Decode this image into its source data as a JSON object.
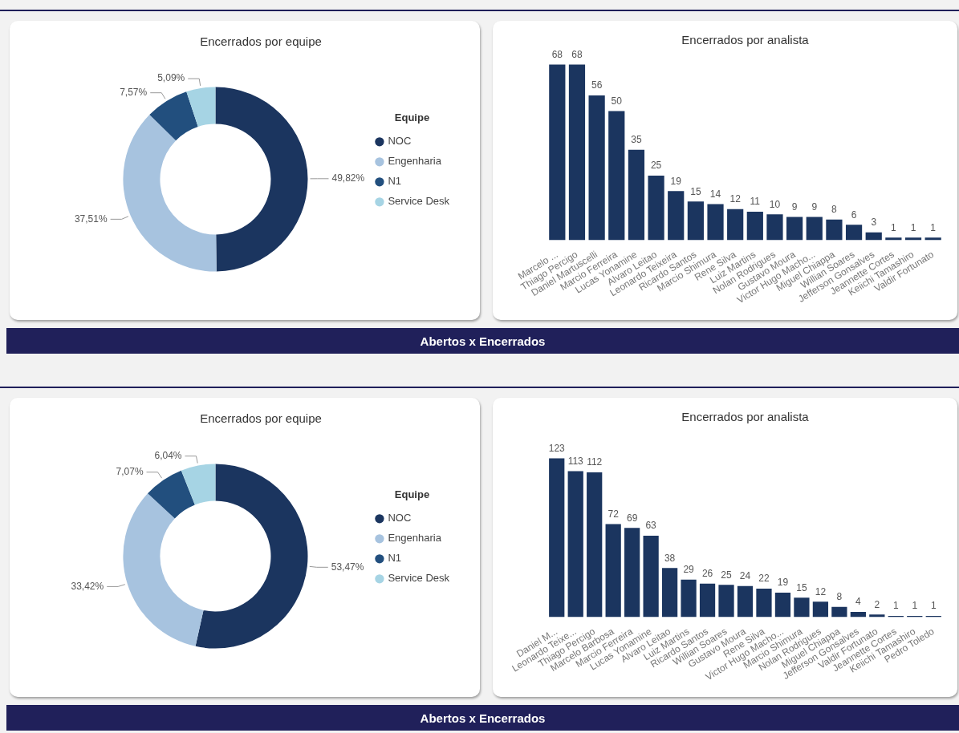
{
  "chart_data": [
    {
      "type": "donut",
      "title": "Encerrados por equipe",
      "legend": "right",
      "legend_title": "Equipe",
      "categories": [
        "NOC",
        "Engenharia",
        "N1",
        "Service Desk"
      ],
      "values": [
        49.82,
        37.51,
        7.57,
        5.09
      ],
      "colors": [
        "#1b355f",
        "#a7c3df",
        "#224f7e",
        "#a6d4e4"
      ],
      "value_labels": [
        "49,82%",
        "37,51%",
        "7,57%",
        "5,09%"
      ]
    },
    {
      "type": "bar",
      "title": "Encerrados por analista",
      "tick_labels": "x",
      "data_labels": true,
      "color": "#1b355f",
      "annotations": [
        "Abertos x Encerrados"
      ],
      "categories": [
        "Marcelo ...",
        "Thiago Percigo",
        "Daniel Martuscelli",
        "Marcio Ferreira",
        "Lucas Yonamine",
        "Alvaro Leitao",
        "Leonardo Teixeira",
        "Ricardo Santos",
        "Marcio Shimura",
        "Rene Silva",
        "Luiz Martins",
        "Nolan Rodrigues",
        "Gustavo Moura",
        "Victor Hugo Macho...",
        "Miguel Chiappa",
        "Willian Soares",
        "Jefferson Gonsalves",
        "Jeannette Cortes",
        "Keiichi Tamashiro",
        "Valdir Fortunato"
      ],
      "values": [
        68,
        68,
        56,
        50,
        35,
        25,
        19,
        15,
        14,
        12,
        11,
        10,
        9,
        9,
        8,
        6,
        3,
        1,
        1,
        1
      ]
    },
    {
      "type": "donut",
      "title": "Encerrados por equipe",
      "legend": "right",
      "legend_title": "Equipe",
      "categories": [
        "NOC",
        "Engenharia",
        "N1",
        "Service Desk"
      ],
      "values": [
        53.47,
        33.42,
        7.07,
        6.04
      ],
      "colors": [
        "#1b355f",
        "#a7c3df",
        "#224f7e",
        "#a6d4e4"
      ],
      "value_labels": [
        "53,47%",
        "33,42%",
        "7,07%",
        "6,04%"
      ]
    },
    {
      "type": "bar",
      "title": "Encerrados por analista",
      "tick_labels": "x",
      "data_labels": true,
      "color": "#1b355f",
      "annotations": [
        "Abertos x Encerrados"
      ],
      "categories": [
        "Daniel M...",
        "Leonardo Teixe...",
        "Thiago Percigo",
        "Marcelo Barbosa",
        "Marcio Ferreira",
        "Lucas Yonamine",
        "Alvaro Leitao",
        "Luiz Martins",
        "Ricardo Santos",
        "Willian Soares",
        "Gustavo Moura",
        "Rene Silva",
        "Victor Hugo Macho...",
        "Marcio Shimura",
        "Nolan Rodrigues",
        "Miguel Chiappa",
        "Jefferson Gonsalves",
        "Valdir Fortunato",
        "Jeannette Cortes",
        "Keiichi Tamashiro",
        "Pedro Toledo"
      ],
      "values": [
        123,
        113,
        112,
        72,
        69,
        63,
        38,
        29,
        26,
        25,
        24,
        22,
        19,
        15,
        12,
        8,
        4,
        2,
        1,
        1,
        1
      ]
    }
  ]
}
